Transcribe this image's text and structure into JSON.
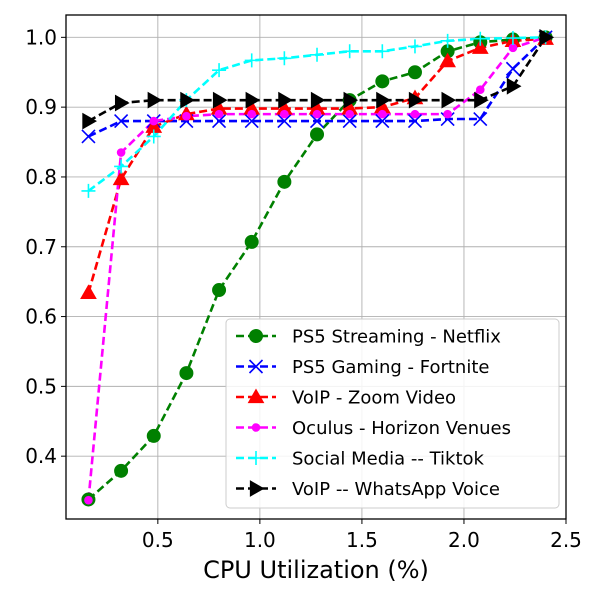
{
  "chart_data": {
    "type": "line",
    "xlabel": "CPU Utilization (%)",
    "ylabel": "",
    "title": "",
    "xlim": [
      0.05,
      2.5
    ],
    "ylim": [
      0.31,
      1.032
    ],
    "xticks": [
      0.5,
      1.0,
      1.5,
      2.0,
      2.5
    ],
    "xtick_labels": [
      "0.5",
      "1.0",
      "1.5",
      "2.0",
      "2.5"
    ],
    "yticks": [
      0.4,
      0.5,
      0.6,
      0.7,
      0.8,
      0.9,
      1.0
    ],
    "ytick_labels": [
      "0.4",
      "0.5",
      "0.6",
      "0.7",
      "0.8",
      "0.9",
      "1.0"
    ],
    "grid": true,
    "legend_position": "lower-right",
    "series": [
      {
        "name": "PS5 Streaming - Netflix",
        "color": "#008000",
        "marker": "circle",
        "x": [
          0.16,
          0.32,
          0.48,
          0.64,
          0.8,
          0.96,
          1.12,
          1.28,
          1.44,
          1.6,
          1.76,
          1.92,
          2.08,
          2.24,
          2.4
        ],
        "y": [
          0.338,
          0.379,
          0.429,
          0.519,
          0.638,
          0.707,
          0.793,
          0.861,
          0.91,
          0.937,
          0.95,
          0.98,
          0.993,
          0.997,
          1.0
        ]
      },
      {
        "name": "PS5 Gaming - Fortnite",
        "color": "#0000ff",
        "marker": "x",
        "x": [
          0.16,
          0.32,
          0.48,
          0.64,
          0.8,
          0.96,
          1.12,
          1.28,
          1.44,
          1.6,
          1.76,
          1.92,
          2.08,
          2.24,
          2.4
        ],
        "y": [
          0.858,
          0.88,
          0.88,
          0.88,
          0.88,
          0.88,
          0.88,
          0.88,
          0.88,
          0.88,
          0.88,
          0.883,
          0.883,
          0.955,
          1.0
        ]
      },
      {
        "name": "VoIP - Zoom Video",
        "color": "#ff0000",
        "marker": "triangle-up",
        "x": [
          0.16,
          0.32,
          0.48,
          0.64,
          0.8,
          0.96,
          1.12,
          1.28,
          1.44,
          1.6,
          1.76,
          1.92,
          2.08,
          2.24,
          2.4
        ],
        "y": [
          0.634,
          0.797,
          0.872,
          0.89,
          0.898,
          0.898,
          0.898,
          0.898,
          0.898,
          0.9,
          0.913,
          0.966,
          0.985,
          0.995,
          0.998
        ]
      },
      {
        "name": "Oculus - Horizon Venues",
        "color": "#ff00ff",
        "marker": "dot",
        "x": [
          0.16,
          0.32,
          0.48,
          0.64,
          0.8,
          0.96,
          1.12,
          1.28,
          1.44,
          1.6,
          1.76,
          1.92,
          2.08,
          2.24,
          2.4
        ],
        "y": [
          0.337,
          0.835,
          0.88,
          0.887,
          0.89,
          0.89,
          0.89,
          0.89,
          0.89,
          0.89,
          0.89,
          0.89,
          0.925,
          0.985,
          1.0
        ]
      },
      {
        "name": "Social Media -- Tiktok",
        "color": "#00ffff",
        "marker": "plus",
        "x": [
          0.16,
          0.32,
          0.48,
          0.64,
          0.8,
          0.96,
          1.12,
          1.28,
          1.44,
          1.6,
          1.76,
          1.92,
          2.08,
          2.24,
          2.4
        ],
        "y": [
          0.78,
          0.815,
          0.858,
          0.91,
          0.953,
          0.967,
          0.97,
          0.975,
          0.98,
          0.98,
          0.987,
          0.995,
          0.998,
          0.999,
          1.0
        ]
      },
      {
        "name": "VoIP -- WhatsApp Voice",
        "color": "#000000",
        "marker": "triangle-right",
        "x": [
          0.16,
          0.32,
          0.48,
          0.64,
          0.8,
          0.96,
          1.12,
          1.28,
          1.44,
          1.6,
          1.76,
          1.92,
          2.08,
          2.24,
          2.4
        ],
        "y": [
          0.88,
          0.906,
          0.91,
          0.91,
          0.91,
          0.91,
          0.91,
          0.91,
          0.91,
          0.91,
          0.91,
          0.91,
          0.91,
          0.93,
          1.0
        ]
      }
    ]
  }
}
